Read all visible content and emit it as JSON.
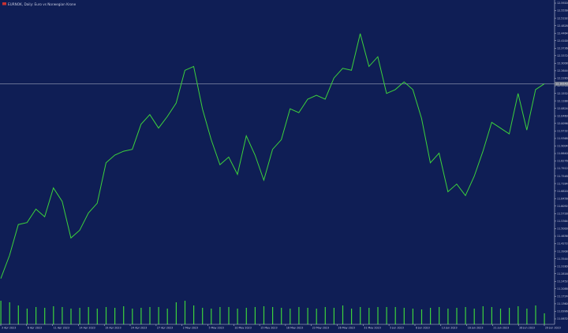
{
  "window": {
    "title": "EURNOK, Daily: Euro vs Norwegian Krone"
  },
  "colors": {
    "background": "#0f1e55",
    "price_line": "#3cd23c",
    "volume_bars": "#3cd23c",
    "axis_text": "#c8cbe0",
    "current_price_line": "#9aa0b8"
  },
  "chart_data": {
    "type": "line",
    "title": "EURNOK, Daily: Euro vs Norwegian Krone",
    "x": [
      "3 Apr 2023",
      "4 Apr 2023",
      "5 Apr 2023",
      "6 Apr 2023",
      "7 Apr 2023",
      "10 Apr 2023",
      "11 Apr 2023",
      "12 Apr 2023",
      "13 Apr 2023",
      "14 Apr 2023",
      "17 Apr 2023",
      "18 Apr 2023",
      "19 Apr 2023",
      "20 Apr 2023",
      "21 Apr 2023",
      "24 Apr 2023",
      "25 Apr 2023",
      "26 Apr 2023",
      "27 Apr 2023",
      "28 Apr 2023",
      "1 May 2023",
      "2 May 2023",
      "3 May 2023",
      "4 May 2023",
      "5 May 2023",
      "8 May 2023",
      "9 May 2023",
      "10 May 2023",
      "11 May 2023",
      "12 May 2023",
      "15 May 2023",
      "16 May 2023",
      "17 May 2023",
      "18 May 2023",
      "19 May 2023",
      "22 May 2023",
      "23 May 2023",
      "24 May 2023",
      "25 May 2023",
      "26 May 2023",
      "29 May 2023",
      "30 May 2023",
      "31 May 2023",
      "1 Jun 2023",
      "2 Jun 2023",
      "5 Jun 2023",
      "6 Jun 2023",
      "7 Jun 2023",
      "8 Jun 2023",
      "9 Jun 2023",
      "12 Jun 2023",
      "13 Jun 2023",
      "14 Jun 2023",
      "15 Jun 2023",
      "16 Jun 2023",
      "19 Jun 2023",
      "20 Jun 2023",
      "21 Jun 2023",
      "22 Jun 2023",
      "23 Jun 2023",
      "26 Jun 2023",
      "27 Jun 2023",
      "28 Jun 2023"
    ],
    "series": [
      {
        "values": [
          11.17,
          11.29,
          11.45,
          11.46,
          11.53,
          11.49,
          11.64,
          11.57,
          11.38,
          11.42,
          11.51,
          11.56,
          11.77,
          11.81,
          11.83,
          11.84,
          11.97,
          12.02,
          11.95,
          12.01,
          12.08,
          12.25,
          12.27,
          12.05,
          11.89,
          11.76,
          11.8,
          11.71,
          11.91,
          11.81,
          11.68,
          11.84,
          11.89,
          12.05,
          12.03,
          12.1,
          12.12,
          12.1,
          12.21,
          12.26,
          12.25,
          12.44,
          12.27,
          12.32,
          12.13,
          12.15,
          12.19,
          12.15,
          12.0,
          11.77,
          11.82,
          11.62,
          11.66,
          11.6,
          11.7,
          11.83,
          11.98,
          11.95,
          11.92,
          12.13,
          11.94,
          12.15,
          12.18
        ]
      }
    ],
    "volume": [
      30,
      28,
      24,
      20,
      22,
      21,
      23,
      22,
      20,
      21,
      22,
      20,
      22,
      21,
      23,
      20,
      21,
      22,
      22,
      20,
      28,
      30,
      24,
      21,
      20,
      22,
      22,
      20,
      21,
      22,
      23,
      22,
      21,
      20,
      22,
      21,
      20,
      22,
      21,
      24,
      20,
      22,
      21,
      22,
      22,
      22,
      21,
      20,
      19,
      21,
      22,
      20,
      21,
      22,
      20,
      23,
      22,
      20,
      21,
      23,
      20,
      24,
      14
    ],
    "ylim": [
      11.12,
      12.59
    ],
    "current_price": 12.18,
    "current_price_label": "12.18140",
    "y_ticks": [
      "12.59200",
      "12.55560",
      "12.51920",
      "12.48280",
      "12.44640",
      "12.41000",
      "12.37360",
      "12.33720",
      "12.30080",
      "12.26440",
      "12.22800",
      "12.19160",
      "12.15520",
      "12.11880",
      "12.08240",
      "12.04600",
      "12.00960",
      "11.97320",
      "11.93680",
      "11.90040",
      "11.86400",
      "11.82760",
      "11.79120",
      "11.75480",
      "11.71840",
      "11.68200",
      "11.64560",
      "11.60920",
      "11.57280",
      "11.53640",
      "11.50000",
      "11.46360",
      "11.42720",
      "11.39080",
      "11.35440",
      "11.31800",
      "11.28160",
      "11.24520",
      "11.20880",
      "11.17240",
      "11.13600",
      "11.09960",
      "11.06320"
    ],
    "x_ticks": [
      "3 Apr 2023",
      "6 Apr 2023",
      "11 Apr 2023",
      "14 Apr 2023",
      "19 Apr 2023",
      "24 Apr 2023",
      "27 Apr 2023",
      "2 May 2023",
      "5 May 2023",
      "10 May 2023",
      "15 May 2023",
      "18 May 2023",
      "23 May 2023",
      "26 May 2023",
      "31 May 2023",
      "5 Jun 2023",
      "8 Jun 2023",
      "13 Jun 2023",
      "16 Jun 2023",
      "21 Jun 2023",
      "26 Jun 2023",
      "29 Jun 2023"
    ],
    "grid": false
  }
}
